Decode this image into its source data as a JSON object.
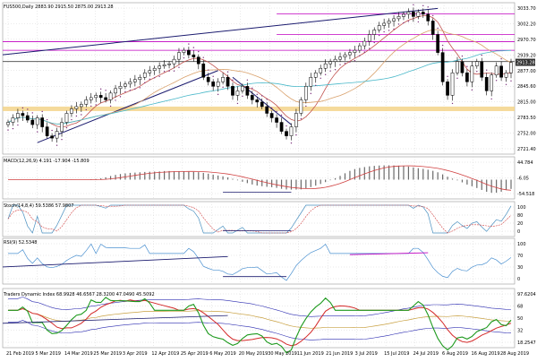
{
  "colors": {
    "background": "#ffffff",
    "frame": "#9a9a9a",
    "grid": "#d4d4d4",
    "candle": "#000000",
    "trendline": "#1a1a6e",
    "resistance": "#c000c0",
    "support_band": "#f3d48a",
    "ma_fast": "#c0504d",
    "ma_mid": "#d9a06a",
    "ma_slow": "#49b8c9",
    "sar": "#7a2c7a",
    "macd": "#6a6a6a",
    "signal": "#d04040",
    "stoch_k": "#4a90c0",
    "stoch_d": "#d04040",
    "rsi": "#4a90d0",
    "tdi_green": "#1e9a1e",
    "tdi_red": "#d42a2a",
    "tdi_yellow": "#c8a040",
    "tdi_band": "#2a2ab0"
  },
  "price_panel": {
    "header": "FUS500,Daily  2883.90 2915.50 2875.00 2913.28",
    "current_price_label": "2913.28",
    "y_ticks": [
      "3033.70",
      "3002.20",
      "2970.70",
      "2939.20",
      "2877.00",
      "2845.60",
      "2815.00",
      "2783.50",
      "2752.00",
      "2721.40"
    ]
  },
  "macd_panel": {
    "header": "MACD(12,26,9) 4.191 -17.904 -15.809",
    "y_ticks": [
      "44.784",
      "-6.05",
      "-54.518"
    ]
  },
  "stoch_panel": {
    "header": "Stoch(14,8,4) 59.5386 57.9807",
    "y_ticks": [
      "100",
      "80",
      "20",
      "0"
    ]
  },
  "rsi_panel": {
    "header": "RSI(9) 52.5348",
    "y_ticks": [
      "100",
      "70",
      "30",
      "0"
    ]
  },
  "tdi_panel": {
    "header": "Traders Dynamic Index 68.9928 46.6567 28.3200 47.0490 45.5092",
    "y_ticks": [
      "97.6204",
      "68",
      "50",
      "32",
      "18.2547"
    ]
  },
  "x_axis": {
    "labels": [
      "21 Feb 2019",
      "5 Mar 2019",
      "14 Mar 2019",
      "25 Mar 2019",
      "3 Apr 2019",
      "12 Apr 2019",
      "25 Apr 2019",
      "6 May 2019",
      "20 May 2019",
      "30 May 2019",
      "11 Jun 2019",
      "21 Jun 2019",
      "3 Jul 2019",
      "15 Jul 2019",
      "24 Jul 2019",
      "6 Aug 2019",
      "16 Aug 2019",
      "28 Aug 2019"
    ]
  },
  "chart_data": {
    "type": "candlestick",
    "symbol": "FUS500",
    "timeframe": "Daily",
    "last_bar": {
      "open": 2883.9,
      "high": 2915.5,
      "low": 2875.0,
      "close": 2913.28
    },
    "price_range": [
      2721.4,
      3033.7
    ],
    "close_series": [
      2780,
      2790,
      2800,
      2795,
      2785,
      2775,
      2790,
      2770,
      2750,
      2745,
      2760,
      2780,
      2800,
      2810,
      2815,
      2820,
      2830,
      2835,
      2840,
      2835,
      2830,
      2845,
      2855,
      2860,
      2865,
      2870,
      2875,
      2880,
      2890,
      2895,
      2900,
      2905,
      2908,
      2910,
      2920,
      2935,
      2940,
      2930,
      2925,
      2910,
      2880,
      2870,
      2860,
      2870,
      2880,
      2860,
      2840,
      2850,
      2860,
      2840,
      2830,
      2825,
      2815,
      2800,
      2790,
      2780,
      2760,
      2750,
      2770,
      2800,
      2830,
      2860,
      2880,
      2890,
      2900,
      2910,
      2915,
      2920,
      2925,
      2930,
      2935,
      2940,
      2950,
      2960,
      2975,
      2985,
      2995,
      3000,
      3005,
      3010,
      3015,
      3020,
      3025,
      3015,
      3025,
      3020,
      3005,
      2975,
      2935,
      2870,
      2840,
      2890,
      2915,
      2890,
      2870,
      2905,
      2915,
      2880,
      2850,
      2885,
      2905,
      2880,
      2890,
      2913
    ],
    "horizontal_levels": [
      3021,
      2975,
      2959,
      2940,
      2915
    ],
    "support_band": [
      2805,
      2815
    ],
    "series": [
      {
        "name": "MACD",
        "range": [
          -54.518,
          44.784
        ]
      },
      {
        "name": "Stoch %K",
        "range": [
          0,
          100
        ]
      },
      {
        "name": "RSI(9)",
        "last": 52.5348,
        "levels": [
          30,
          70
        ]
      },
      {
        "name": "TDI",
        "range": [
          18.2547,
          97.6204
        ],
        "levels": [
          32,
          50,
          68
        ]
      }
    ]
  }
}
